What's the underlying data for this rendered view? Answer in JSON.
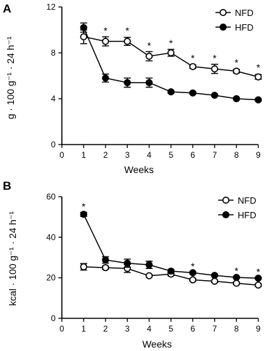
{
  "chart_data": [
    {
      "type": "line",
      "panel_label": "A",
      "xlabel": "Weeks",
      "ylabel": "g · 100 g⁻¹ · 24 h⁻¹",
      "xlim": [
        0,
        9
      ],
      "ylim": [
        0,
        12
      ],
      "x_ticks": [
        0,
        1,
        2,
        3,
        4,
        5,
        6,
        7,
        8,
        9
      ],
      "y_ticks": [
        0,
        4,
        8,
        12
      ],
      "x": [
        1,
        2,
        3,
        4,
        5,
        6,
        7,
        8,
        9
      ],
      "grid": false,
      "legend_position": "top-right",
      "series": [
        {
          "name": "NFD",
          "marker": "open-circle",
          "values": [
            9.4,
            9.0,
            9.0,
            7.7,
            8.0,
            6.8,
            6.6,
            6.4,
            5.9
          ],
          "errors": [
            0.6,
            0.4,
            0.35,
            0.4,
            0.3,
            0.15,
            0.4,
            0.15,
            0.2
          ]
        },
        {
          "name": "HFD",
          "marker": "filled-circle",
          "values": [
            10.2,
            5.8,
            5.4,
            5.4,
            4.6,
            4.5,
            4.3,
            4.0,
            3.9
          ],
          "errors": [
            0.4,
            0.35,
            0.4,
            0.4,
            0.1,
            0.1,
            0.1,
            0.1,
            0.1
          ]
        }
      ],
      "annotations": [
        {
          "text": "*",
          "x": 2,
          "y": 10.0
        },
        {
          "text": "*",
          "x": 3,
          "y": 10.0
        },
        {
          "text": "*",
          "x": 4,
          "y": 8.7
        },
        {
          "text": "*",
          "x": 5,
          "y": 8.9
        },
        {
          "text": "*",
          "x": 6,
          "y": 7.6
        },
        {
          "text": "*",
          "x": 7,
          "y": 7.6
        },
        {
          "text": "*",
          "x": 8,
          "y": 7.2
        },
        {
          "text": "*",
          "x": 9,
          "y": 6.8
        }
      ]
    },
    {
      "type": "line",
      "panel_label": "B",
      "xlabel": "Weeks",
      "ylabel": "kcal · 100 g⁻¹ · 24 h⁻¹",
      "xlim": [
        0,
        9
      ],
      "ylim": [
        0,
        60
      ],
      "x_ticks": [
        0,
        1,
        2,
        3,
        4,
        5,
        6,
        7,
        8,
        9
      ],
      "y_ticks": [
        0,
        20,
        40,
        60
      ],
      "x": [
        1,
        2,
        3,
        4,
        5,
        6,
        7,
        8,
        9
      ],
      "grid": false,
      "legend_position": "top-right",
      "series": [
        {
          "name": "NFD",
          "marker": "open-circle",
          "values": [
            25.4,
            25.0,
            24.6,
            21.0,
            21.8,
            19.0,
            18.3,
            17.3,
            16.4
          ],
          "errors": [
            1.6,
            0.8,
            2.0,
            0.6,
            0.8,
            0.6,
            0.6,
            0.6,
            0.6
          ]
        },
        {
          "name": "HFD",
          "marker": "filled-circle",
          "values": [
            51.3,
            28.8,
            27.2,
            26.4,
            23.3,
            22.5,
            21.2,
            20.2,
            19.8
          ],
          "errors": [
            1.0,
            1.6,
            2.0,
            1.8,
            0.6,
            0.5,
            0.5,
            0.5,
            0.5
          ]
        }
      ],
      "annotations": [
        {
          "text": "*",
          "x": 1,
          "y": 55.5
        },
        {
          "text": "*",
          "x": 6,
          "y": 26.0
        },
        {
          "text": "*",
          "x": 8,
          "y": 23.8
        },
        {
          "text": "*",
          "x": 9,
          "y": 23.4
        }
      ]
    }
  ],
  "colors": {
    "axis": "#000000",
    "line": "#000000",
    "open_marker_fill": "#ffffff",
    "filled_marker_fill": "#000000"
  }
}
